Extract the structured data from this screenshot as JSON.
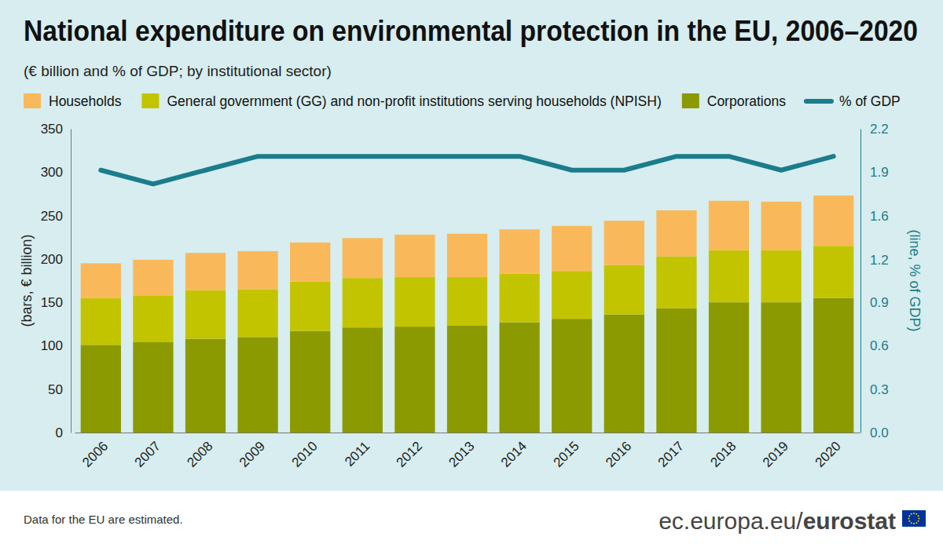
{
  "chart_data": {
    "type": "bar",
    "title": "National expenditure on environmental protection in the EU, 2006–2020",
    "subtitle": "(€ billion and % of GDP; by institutional sector)",
    "ylabel": "(bars, € billion)",
    "y2label": "(line, % of GDP)",
    "footnote": "Data for the EU are estimated.",
    "source": "ec.europa.eu/eurostat",
    "categories": [
      "2006",
      "2007",
      "2008",
      "2009",
      "2010",
      "2011",
      "2012",
      "2013",
      "2014",
      "2015",
      "2016",
      "2017",
      "2018",
      "2019",
      "2020"
    ],
    "series": [
      {
        "name": "Households",
        "color": "#f9b95b",
        "values": [
          40,
          41,
          43,
          44,
          45,
          46,
          49,
          50,
          51,
          52,
          51,
          53,
          57,
          56,
          58
        ]
      },
      {
        "name": "General government (GG) and non-profit institutions serving households (NPISH)",
        "color": "#c3c400",
        "values": [
          54,
          54,
          56,
          55,
          57,
          57,
          57,
          56,
          56,
          55,
          57,
          60,
          60,
          60,
          60
        ]
      },
      {
        "name": "Corporations",
        "color": "#8b9a00",
        "values": [
          101,
          104,
          108,
          110,
          117,
          121,
          122,
          123,
          127,
          131,
          136,
          143,
          150,
          150,
          155
        ]
      },
      {
        "name": "% of GDP",
        "color": "#1b7c8b",
        "type": "line",
        "axis": "y2",
        "values": [
          1.9,
          1.8,
          1.9,
          2.0,
          2.0,
          2.0,
          2.0,
          2.0,
          2.0,
          1.9,
          1.9,
          2.0,
          2.0,
          1.9,
          2.0
        ]
      }
    ],
    "stacked": true,
    "grid": false,
    "ylim": [
      0,
      350
    ],
    "yticks": [
      0,
      50,
      100,
      150,
      200,
      250,
      300,
      350
    ],
    "y2lim": [
      0,
      2.2
    ],
    "y2ticks": [
      {
        "value": 0,
        "label": "0.0"
      },
      {
        "value": 0.314,
        "label": "0.3"
      },
      {
        "value": 0.629,
        "label": "0.6"
      },
      {
        "value": 0.943,
        "label": "0.9"
      },
      {
        "value": 1.249,
        "label": "1.2"
      },
      {
        "value": 1.571,
        "label": "1.6"
      },
      {
        "value": 1.886,
        "label": "1.9"
      },
      2.2
    ]
  }
}
